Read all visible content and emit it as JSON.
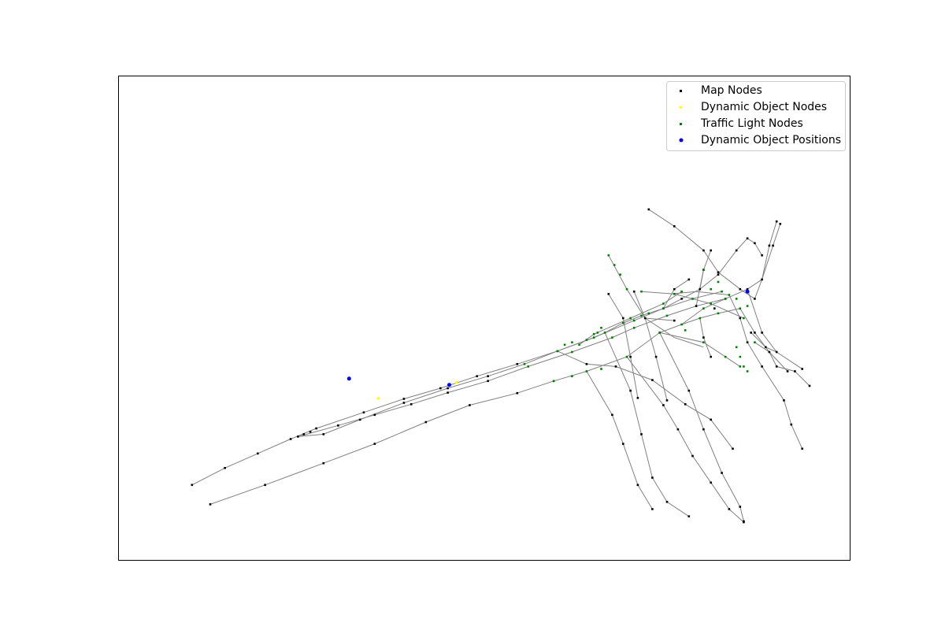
{
  "chart_data": {
    "type": "scatter",
    "title": "",
    "xlabel": "",
    "ylabel": "",
    "axes_visible": false,
    "grid": false,
    "xlim": [
      0,
      1000
    ],
    "ylim": [
      0,
      1000
    ],
    "legend": {
      "placement": "top-right",
      "entries": [
        "Map Nodes",
        "Dynamic Object Nodes",
        "Traffic Light Nodes",
        "Dynamic Object Positions"
      ]
    },
    "colors": {
      "map_nodes": "#000000",
      "dynamic_object_nodes": "#ffff00",
      "traffic_light_nodes": "#008000",
      "dynamic_object_positions": "#0000ff",
      "edges": "#808080"
    },
    "edges": [
      [
        [
          100,
          155
        ],
        [
          145,
          190
        ],
        [
          190,
          220
        ],
        [
          235,
          250
        ],
        [
          270,
          272
        ],
        [
          335,
          305
        ],
        [
          390,
          333
        ],
        [
          440,
          355
        ],
        [
          490,
          380
        ],
        [
          545,
          405
        ],
        [
          600,
          432
        ],
        [
          650,
          460
        ],
        [
          665,
          470
        ],
        [
          690,
          490
        ],
        [
          715,
          505
        ],
        [
          745,
          520
        ],
        [
          770,
          540
        ],
        [
          795,
          560
        ],
        [
          820,
          590
        ],
        [
          845,
          640
        ],
        [
          860,
          665
        ]
      ],
      [
        [
          125,
          115
        ],
        [
          200,
          155
        ],
        [
          280,
          200
        ],
        [
          350,
          240
        ],
        [
          420,
          285
        ],
        [
          480,
          320
        ],
        [
          545,
          345
        ],
        [
          595,
          370
        ],
        [
          640,
          390
        ],
        [
          695,
          420
        ],
        [
          740,
          470
        ],
        [
          770,
          487
        ],
        [
          795,
          500
        ],
        [
          820,
          510
        ],
        [
          850,
          520
        ]
      ],
      [
        [
          245,
          255
        ],
        [
          300,
          278
        ],
        [
          350,
          300
        ],
        [
          400,
          322
        ],
        [
          450,
          346
        ],
        [
          505,
          370
        ],
        [
          560,
          400
        ],
        [
          620,
          430
        ],
        [
          675,
          460
        ],
        [
          705,
          480
        ],
        [
          750,
          505
        ],
        [
          790,
          525
        ],
        [
          830,
          540
        ],
        [
          860,
          560
        ]
      ],
      [
        [
          245,
          255
        ],
        [
          280,
          260
        ],
        [
          330,
          290
        ],
        [
          390,
          325
        ],
        [
          450,
          355
        ],
        [
          505,
          380
        ],
        [
          555,
          405
        ],
        [
          600,
          432
        ],
        [
          650,
          460
        ],
        [
          705,
          495
        ],
        [
          745,
          520
        ],
        [
          785,
          540
        ],
        [
          825,
          555
        ]
      ],
      [
        [
          630,
          445
        ],
        [
          650,
          467
        ],
        [
          700,
          500
        ],
        [
          745,
          530
        ],
        [
          770,
          555
        ]
      ],
      [
        [
          670,
          630
        ],
        [
          695,
          560
        ],
        [
          720,
          500
        ],
        [
          760,
          495
        ]
      ],
      [
        [
          725,
          725
        ],
        [
          760,
          690
        ],
        [
          800,
          640
        ],
        [
          820,
          595
        ],
        [
          850,
          560
        ],
        [
          870,
          540
        ]
      ],
      [
        [
          860,
          560
        ],
        [
          880,
          470
        ],
        [
          900,
          430
        ],
        [
          935,
          395
        ]
      ],
      [
        [
          850,
          520
        ],
        [
          870,
          470
        ],
        [
          890,
          430
        ],
        [
          915,
          390
        ]
      ],
      [
        [
          860,
          560
        ],
        [
          880,
          580
        ],
        [
          895,
          650
        ],
        [
          905,
          695
        ]
      ],
      [
        [
          870,
          540
        ],
        [
          880,
          580
        ],
        [
          890,
          650
        ],
        [
          900,
          700
        ]
      ],
      [
        [
          710,
          335
        ],
        [
          700,
          420
        ],
        [
          690,
          500
        ],
        [
          670,
          550
        ]
      ],
      [
        [
          750,
          330
        ],
        [
          735,
          420
        ],
        [
          720,
          500
        ],
        [
          705,
          555
        ]
      ],
      [
        [
          715,
          555
        ],
        [
          760,
          550
        ],
        [
          810,
          530
        ],
        [
          855,
          500
        ]
      ],
      [
        [
          720,
          500
        ],
        [
          760,
          460
        ],
        [
          800,
          440
        ]
      ],
      [
        [
          740,
          470
        ],
        [
          800,
          450
        ],
        [
          830,
          420
        ],
        [
          850,
          400
        ]
      ],
      [
        [
          770,
          487
        ],
        [
          800,
          520
        ],
        [
          830,
          540
        ]
      ],
      [
        [
          790,
          525
        ],
        [
          800,
          600
        ],
        [
          810,
          640
        ]
      ],
      [
        [
          795,
          560
        ],
        [
          800,
          600
        ]
      ],
      [
        [
          745,
          520
        ],
        [
          760,
          560
        ],
        [
          780,
          580
        ]
      ],
      [
        [
          755,
          550
        ],
        [
          790,
          555
        ],
        [
          835,
          548
        ]
      ],
      [
        [
          795,
          500
        ],
        [
          800,
          460
        ],
        [
          810,
          420
        ]
      ],
      [
        [
          600,
          432
        ],
        [
          640,
          405
        ],
        [
          680,
          400
        ],
        [
          730,
          372
        ],
        [
          775,
          322
        ],
        [
          810,
          290
        ],
        [
          840,
          230
        ]
      ],
      [
        [
          665,
          470
        ],
        [
          700,
          350
        ],
        [
          715,
          260
        ],
        [
          730,
          170
        ],
        [
          750,
          120
        ],
        [
          780,
          90
        ]
      ],
      [
        [
          695,
          420
        ],
        [
          745,
          320
        ],
        [
          765,
          270
        ],
        [
          785,
          215
        ],
        [
          810,
          160
        ],
        [
          835,
          105
        ],
        [
          855,
          78
        ]
      ],
      [
        [
          740,
          470
        ],
        [
          780,
          350
        ],
        [
          800,
          270
        ],
        [
          825,
          180
        ],
        [
          850,
          110
        ],
        [
          855,
          80
        ]
      ],
      [
        [
          640,
          390
        ],
        [
          675,
          300
        ],
        [
          690,
          240
        ],
        [
          710,
          155
        ],
        [
          730,
          105
        ]
      ],
      [
        [
          835,
          548
        ],
        [
          850,
          500
        ],
        [
          860,
          450
        ],
        [
          880,
          400
        ],
        [
          910,
          330
        ],
        [
          920,
          280
        ],
        [
          935,
          230
        ]
      ],
      [
        [
          870,
          450
        ],
        [
          890,
          430
        ],
        [
          900,
          400
        ],
        [
          925,
          390
        ],
        [
          945,
          360
        ]
      ],
      [
        [
          865,
          470
        ],
        [
          885,
          440
        ],
        [
          900,
          430
        ]
      ],
      [
        [
          860,
          665
        ],
        [
          870,
          655
        ],
        [
          880,
          630
        ]
      ]
    ],
    "map_nodes": [
      [
        100,
        155
      ],
      [
        145,
        190
      ],
      [
        190,
        220
      ],
      [
        235,
        250
      ],
      [
        270,
        272
      ],
      [
        335,
        305
      ],
      [
        390,
        333
      ],
      [
        440,
        355
      ],
      [
        490,
        380
      ],
      [
        545,
        405
      ],
      [
        125,
        115
      ],
      [
        200,
        155
      ],
      [
        280,
        200
      ],
      [
        350,
        240
      ],
      [
        420,
        285
      ],
      [
        480,
        320
      ],
      [
        545,
        345
      ],
      [
        595,
        370
      ],
      [
        300,
        278
      ],
      [
        350,
        300
      ],
      [
        400,
        322
      ],
      [
        450,
        346
      ],
      [
        505,
        370
      ],
      [
        280,
        260
      ],
      [
        330,
        290
      ],
      [
        390,
        325
      ],
      [
        450,
        355
      ],
      [
        505,
        380
      ],
      [
        245,
        255
      ],
      [
        253,
        260
      ],
      [
        262,
        265
      ],
      [
        720,
        500
      ],
      [
        740,
        470
      ],
      [
        760,
        495
      ],
      [
        790,
        525
      ],
      [
        830,
        540
      ],
      [
        860,
        560
      ],
      [
        880,
        580
      ],
      [
        895,
        650
      ],
      [
        905,
        695
      ],
      [
        900,
        700
      ],
      [
        890,
        650
      ],
      [
        860,
        665
      ],
      [
        870,
        655
      ],
      [
        880,
        630
      ],
      [
        710,
        335
      ],
      [
        700,
        420
      ],
      [
        690,
        500
      ],
      [
        670,
        550
      ],
      [
        750,
        330
      ],
      [
        735,
        420
      ],
      [
        705,
        555
      ],
      [
        725,
        725
      ],
      [
        760,
        690
      ],
      [
        800,
        640
      ],
      [
        820,
        595
      ],
      [
        850,
        560
      ],
      [
        870,
        540
      ],
      [
        870,
        470
      ],
      [
        890,
        430
      ],
      [
        915,
        390
      ],
      [
        880,
        470
      ],
      [
        900,
        430
      ],
      [
        935,
        395
      ],
      [
        815,
        520
      ],
      [
        800,
        460
      ],
      [
        810,
        420
      ],
      [
        780,
        580
      ],
      [
        760,
        560
      ],
      [
        810,
        640
      ],
      [
        800,
        600
      ],
      [
        640,
        405
      ],
      [
        680,
        400
      ],
      [
        730,
        372
      ],
      [
        775,
        322
      ],
      [
        810,
        290
      ],
      [
        840,
        230
      ],
      [
        700,
        350
      ],
      [
        715,
        260
      ],
      [
        730,
        170
      ],
      [
        750,
        120
      ],
      [
        780,
        90
      ],
      [
        745,
        320
      ],
      [
        765,
        270
      ],
      [
        785,
        215
      ],
      [
        810,
        160
      ],
      [
        835,
        105
      ],
      [
        855,
        78
      ],
      [
        780,
        350
      ],
      [
        800,
        270
      ],
      [
        825,
        180
      ],
      [
        850,
        110
      ],
      [
        855,
        80
      ],
      [
        675,
        300
      ],
      [
        690,
        240
      ],
      [
        710,
        155
      ],
      [
        730,
        105
      ],
      [
        850,
        500
      ],
      [
        860,
        450
      ],
      [
        880,
        400
      ],
      [
        910,
        330
      ],
      [
        920,
        280
      ],
      [
        935,
        230
      ],
      [
        900,
        400
      ],
      [
        925,
        390
      ],
      [
        945,
        360
      ],
      [
        885,
        440
      ],
      [
        865,
        470
      ],
      [
        745,
        520
      ],
      [
        770,
        540
      ],
      [
        795,
        560
      ],
      [
        820,
        590
      ],
      [
        845,
        640
      ]
    ],
    "traffic_light_nodes": [
      [
        600,
        432
      ],
      [
        620,
        450
      ],
      [
        650,
        460
      ],
      [
        665,
        470
      ],
      [
        690,
        490
      ],
      [
        715,
        505
      ],
      [
        745,
        520
      ],
      [
        560,
        400
      ],
      [
        620,
        430
      ],
      [
        675,
        460
      ],
      [
        705,
        480
      ],
      [
        750,
        505
      ],
      [
        600,
        432
      ],
      [
        650,
        467
      ],
      [
        700,
        500
      ],
      [
        745,
        530
      ],
      [
        770,
        555
      ],
      [
        670,
        630
      ],
      [
        678,
        610
      ],
      [
        686,
        590
      ],
      [
        695,
        560
      ],
      [
        715,
        555
      ],
      [
        760,
        550
      ],
      [
        810,
        530
      ],
      [
        855,
        500
      ],
      [
        770,
        487
      ],
      [
        795,
        500
      ],
      [
        820,
        510
      ],
      [
        850,
        520
      ],
      [
        640,
        390
      ],
      [
        660,
        395
      ],
      [
        695,
        420
      ],
      [
        740,
        470
      ],
      [
        775,
        475
      ],
      [
        800,
        450
      ],
      [
        830,
        420
      ],
      [
        850,
        400
      ],
      [
        870,
        450
      ],
      [
        800,
        520
      ],
      [
        835,
        548
      ],
      [
        825,
        555
      ],
      [
        845,
        540
      ],
      [
        860,
        525
      ],
      [
        595,
        370
      ],
      [
        620,
        380
      ],
      [
        555,
        405
      ],
      [
        600,
        432
      ],
      [
        610,
        445
      ],
      [
        630,
        445
      ],
      [
        640,
        455
      ],
      [
        655,
        470
      ],
      [
        660,
        480
      ],
      [
        705,
        495
      ],
      [
        725,
        510
      ],
      [
        785,
        540
      ],
      [
        800,
        600
      ],
      [
        810,
        560
      ],
      [
        820,
        575
      ],
      [
        830,
        540
      ],
      [
        845,
        440
      ],
      [
        850,
        420
      ],
      [
        855,
        400
      ],
      [
        860,
        390
      ]
    ],
    "dynamic_object_nodes": [
      [
        355,
        334
      ],
      [
        462,
        367
      ]
    ],
    "dynamic_object_positions": [
      [
        315,
        375
      ],
      [
        452,
        362
      ],
      [
        860,
        555
      ]
    ]
  }
}
